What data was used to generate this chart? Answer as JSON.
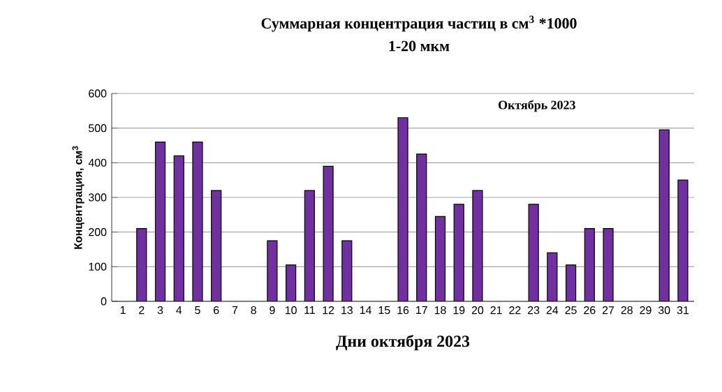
{
  "chart_data": {
    "type": "bar",
    "title": "Суммарная концентрация частиц  в см$^{3}$ *1000",
    "subtitle": "1-20 мкм",
    "xlabel": "Дни октября 2023",
    "ylabel": "Концентрация, см$^{3}$",
    "annotations": [
      "Октябрь  2023"
    ],
    "categories": [
      "1",
      "2",
      "3",
      "4",
      "5",
      "6",
      "7",
      "8",
      "9",
      "10",
      "11",
      "12",
      "13",
      "14",
      "15",
      "16",
      "17",
      "18",
      "19",
      "20",
      "21",
      "22",
      "23",
      "24",
      "25",
      "26",
      "27",
      "28",
      "29",
      "30",
      "31"
    ],
    "values": [
      null,
      210,
      460,
      420,
      460,
      320,
      null,
      null,
      175,
      105,
      320,
      390,
      175,
      null,
      null,
      530,
      425,
      245,
      280,
      320,
      null,
      null,
      280,
      140,
      105,
      210,
      210,
      null,
      null,
      495,
      350
    ],
    "color": "#7030a0",
    "ylim": [
      0,
      600
    ],
    "yticks": [
      0,
      100,
      200,
      300,
      400,
      500,
      600
    ],
    "grid": "y"
  }
}
